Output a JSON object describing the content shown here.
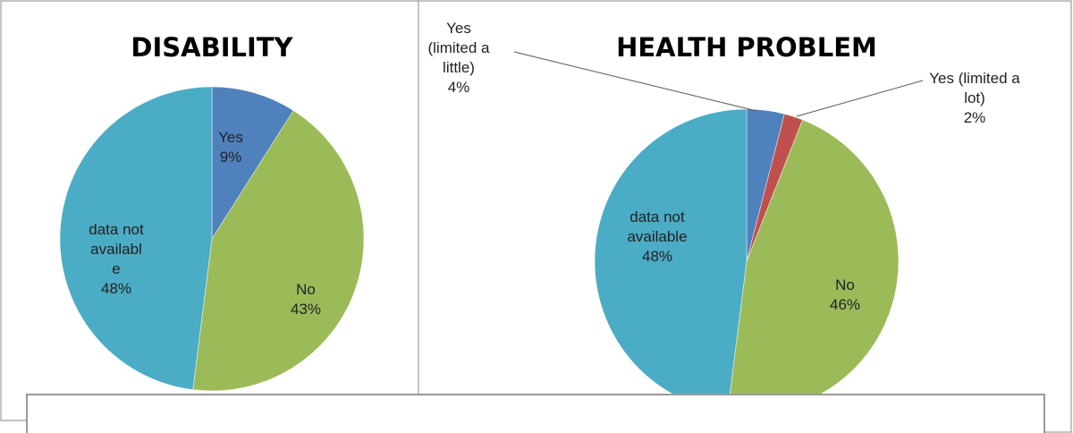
{
  "chart_data": [
    {
      "type": "pie",
      "title": "DISABILITY",
      "categories": [
        "Yes",
        "No",
        "data not available"
      ],
      "values": [
        9,
        43,
        48
      ],
      "value_labels": [
        "9%",
        "43%",
        "48%"
      ],
      "colors": [
        "#4f81bd",
        "#9bbb59",
        "#4bacc6"
      ]
    },
    {
      "type": "pie",
      "title": "HEALTH PROBLEM",
      "categories": [
        "Yes (limited a little)",
        "Yes (limited a lot)",
        "No",
        "data not available"
      ],
      "values": [
        4,
        2,
        46,
        48
      ],
      "value_labels": [
        "4%",
        "2%",
        "46%",
        "48%"
      ],
      "colors": [
        "#4f81bd",
        "#c0504d",
        "#9bbb59",
        "#4bacc6"
      ]
    }
  ]
}
